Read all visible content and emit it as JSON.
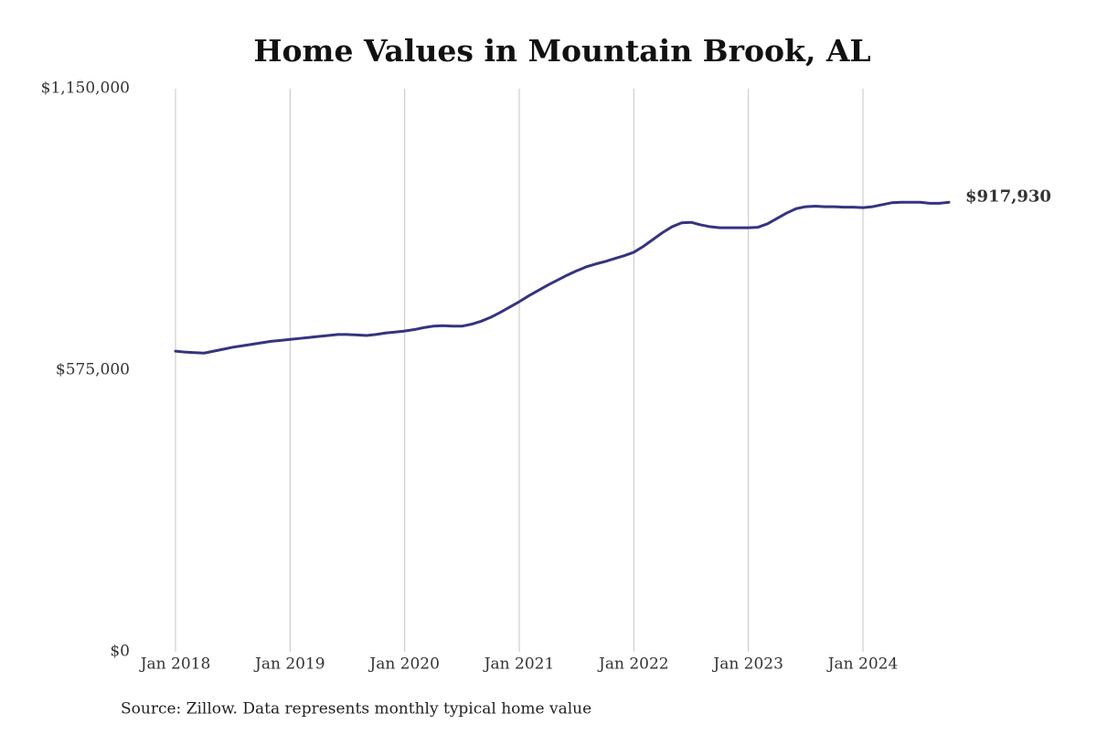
{
  "chart_data": {
    "type": "line",
    "title": "Home Values in Mountain Brook, AL",
    "source": "Source: Zillow. Data represents monthly typical home value",
    "x": [
      "2018-01",
      "2018-02",
      "2018-03",
      "2018-04",
      "2018-05",
      "2018-06",
      "2018-07",
      "2018-08",
      "2018-09",
      "2018-10",
      "2018-11",
      "2018-12",
      "2019-01",
      "2019-02",
      "2019-03",
      "2019-04",
      "2019-05",
      "2019-06",
      "2019-07",
      "2019-08",
      "2019-09",
      "2019-10",
      "2019-11",
      "2019-12",
      "2020-01",
      "2020-02",
      "2020-03",
      "2020-04",
      "2020-05",
      "2020-06",
      "2020-07",
      "2020-08",
      "2020-09",
      "2020-10",
      "2020-11",
      "2020-12",
      "2021-01",
      "2021-02",
      "2021-03",
      "2021-04",
      "2021-05",
      "2021-06",
      "2021-07",
      "2021-08",
      "2021-09",
      "2021-10",
      "2021-11",
      "2021-12",
      "2022-01",
      "2022-02",
      "2022-03",
      "2022-04",
      "2022-05",
      "2022-06",
      "2022-07",
      "2022-08",
      "2022-09",
      "2022-10",
      "2022-11",
      "2022-12",
      "2023-01",
      "2023-02",
      "2023-03",
      "2023-04",
      "2023-05",
      "2023-06",
      "2023-07",
      "2023-08",
      "2023-09",
      "2023-10",
      "2023-11",
      "2023-12",
      "2024-01",
      "2024-02",
      "2024-03",
      "2024-04",
      "2024-05",
      "2024-06",
      "2024-07",
      "2024-08",
      "2024-09",
      "2024-10"
    ],
    "series": [
      {
        "name": "Typical home value",
        "color": "#35347f",
        "values": [
          614000,
          612000,
          611000,
          610000,
          614000,
          618000,
          622000,
          625000,
          628000,
          631000,
          634000,
          636000,
          638000,
          640000,
          642000,
          644000,
          646000,
          648000,
          648000,
          647000,
          646000,
          648000,
          651000,
          653000,
          655000,
          658000,
          662000,
          665000,
          666000,
          665000,
          665000,
          669000,
          675000,
          683000,
          693000,
          704000,
          715000,
          727000,
          738000,
          749000,
          759000,
          769000,
          778000,
          786000,
          792000,
          797000,
          803000,
          809000,
          816000,
          828000,
          842000,
          856000,
          868000,
          876000,
          877000,
          872000,
          868000,
          866000,
          866000,
          866000,
          866000,
          867000,
          874000,
          885000,
          896000,
          905000,
          909000,
          910000,
          909000,
          909000,
          908000,
          908000,
          907000,
          909000,
          913000,
          917000,
          918000,
          918000,
          918000,
          916000,
          916000,
          917930
        ],
        "value_labels": [
          null,
          null,
          null,
          null,
          null,
          null,
          null,
          null,
          null,
          null,
          null,
          null,
          null,
          null,
          null,
          null,
          null,
          null,
          null,
          null,
          null,
          null,
          null,
          null,
          null,
          null,
          null,
          null,
          null,
          null,
          null,
          null,
          null,
          null,
          null,
          null,
          null,
          null,
          null,
          null,
          null,
          null,
          null,
          null,
          null,
          null,
          null,
          null,
          null,
          null,
          null,
          null,
          null,
          null,
          null,
          null,
          null,
          null,
          null,
          null,
          null,
          null,
          null,
          null,
          null,
          null,
          null,
          null,
          null,
          null,
          null,
          null,
          null,
          null,
          null,
          null,
          null,
          null,
          null,
          null,
          null,
          "$917,930"
        ]
      }
    ],
    "ylim": [
      0,
      1150000
    ],
    "yticks": [
      {
        "value": 0,
        "label": "$0"
      },
      {
        "value": 575000,
        "label": "$575,000"
      },
      {
        "value": 1150000,
        "label": "$1,150,000"
      }
    ],
    "xticks": [
      {
        "value": "2018-01",
        "label": "Jan 2018"
      },
      {
        "value": "2019-01",
        "label": "Jan 2019"
      },
      {
        "value": "2020-01",
        "label": "Jan 2020"
      },
      {
        "value": "2021-01",
        "label": "Jan 2021"
      },
      {
        "value": "2022-01",
        "label": "Jan 2022"
      },
      {
        "value": "2023-01",
        "label": "Jan 2023"
      },
      {
        "value": "2024-01",
        "label": "Jan 2024"
      }
    ],
    "grid": "x"
  }
}
